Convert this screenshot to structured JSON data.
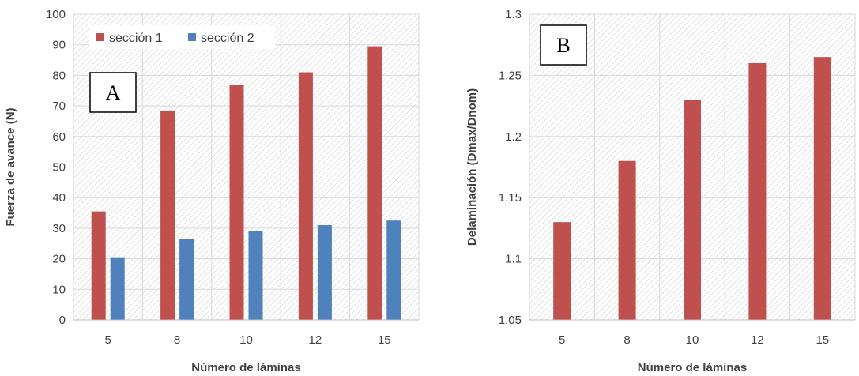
{
  "chart_data": [
    {
      "type": "bar",
      "panel_label": "A",
      "categories": [
        "5",
        "8",
        "10",
        "12",
        "15"
      ],
      "series": [
        {
          "name": "sección 1",
          "color": "#c0504d",
          "values": [
            35.5,
            68.5,
            77,
            81,
            89.5
          ]
        },
        {
          "name": "sección 2",
          "color": "#4f81bd",
          "values": [
            20.5,
            26.5,
            29,
            31,
            32.5
          ]
        }
      ],
      "xlabel": "Número de láminas",
      "ylabel": "Fuerza de avance (N)",
      "ylim": [
        0,
        100
      ],
      "yticks": [
        "0",
        "10",
        "20",
        "30",
        "40",
        "50",
        "60",
        "70",
        "80",
        "90",
        "100"
      ],
      "grid": true,
      "background": "hatched",
      "legend_position": "top-left"
    },
    {
      "type": "bar",
      "panel_label": "B",
      "categories": [
        "5",
        "8",
        "10",
        "12",
        "15"
      ],
      "series": [
        {
          "color": "#c0504d",
          "values": [
            1.13,
            1.18,
            1.23,
            1.26,
            1.265
          ]
        }
      ],
      "xlabel": "Número de láminas",
      "ylabel": "Delaminación (Dmax/Dnom)",
      "ylim": [
        1.05,
        1.3
      ],
      "yticks": [
        "1.05",
        "1.1",
        "1.15",
        "1.2",
        "1.25",
        "1.3"
      ],
      "grid": true,
      "background": "hatched",
      "legend_position": "none"
    }
  ]
}
